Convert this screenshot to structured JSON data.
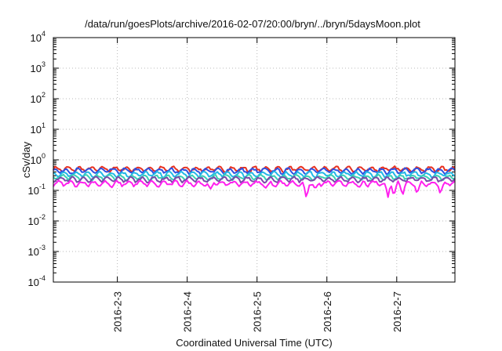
{
  "chart_data": {
    "type": "line",
    "title": "/data/run/goesPlots/archive/2016-02-07/20:00/bryn/../bryn/5daysMoon.plot",
    "xlabel": "Coordinated Universal Time (UTC)",
    "ylabel": "cSv/day",
    "y_scale": "log",
    "ylim_exp": [
      -4,
      4
    ],
    "y_tick_exponents": [
      -4,
      -3,
      -2,
      -1,
      0,
      1,
      2,
      3,
      4
    ],
    "y_tick_base": "10",
    "xlim": [
      "2016-02-02 02:00",
      "2016-02-07 20:00"
    ],
    "x_ticks": [
      {
        "label": "2016-2-3",
        "date": "2016-02-03 00:00"
      },
      {
        "label": "2016-2-4",
        "date": "2016-02-04 00:00"
      },
      {
        "label": "2016-2-5",
        "date": "2016-02-05 00:00"
      },
      {
        "label": "2016-2-6",
        "date": "2016-02-06 00:00"
      },
      {
        "label": "2016-2-7",
        "date": "2016-02-07 00:00"
      }
    ],
    "grid": true,
    "series": [
      {
        "color": "#e8301f",
        "base": 0.5,
        "dips": []
      },
      {
        "color": "#2f50e0",
        "base": 0.44,
        "dips": []
      },
      {
        "color": "#22b8e6",
        "base": 0.34,
        "dips": []
      },
      {
        "color": "#3ad0b4",
        "base": 0.27,
        "dips": []
      },
      {
        "color": "#7a4aa8",
        "base": 0.23,
        "dips": []
      },
      {
        "color": "#ff20ee",
        "base": 0.17,
        "dips": [
          {
            "date": "2016-02-05 17:00",
            "value": 0.045
          },
          {
            "date": "2016-02-06 21:00",
            "value": 0.06
          },
          {
            "date": "2016-02-06 23:00",
            "value": 0.055
          },
          {
            "date": "2016-02-07 02:00",
            "value": 0.06
          },
          {
            "date": "2016-02-07 07:00",
            "value": 0.07
          },
          {
            "date": "2016-02-07 15:00",
            "value": 0.07
          },
          {
            "date": "2016-02-02 22:00",
            "value": 0.12
          },
          {
            "date": "2016-02-03 14:00",
            "value": 0.12
          },
          {
            "date": "2016-02-04 08:00",
            "value": 0.11
          },
          {
            "date": "2016-02-05 03:00",
            "value": 0.12
          },
          {
            "date": "2016-02-05 20:00",
            "value": 0.11
          },
          {
            "date": "2016-02-06 11:00",
            "value": 0.12
          }
        ]
      }
    ]
  }
}
